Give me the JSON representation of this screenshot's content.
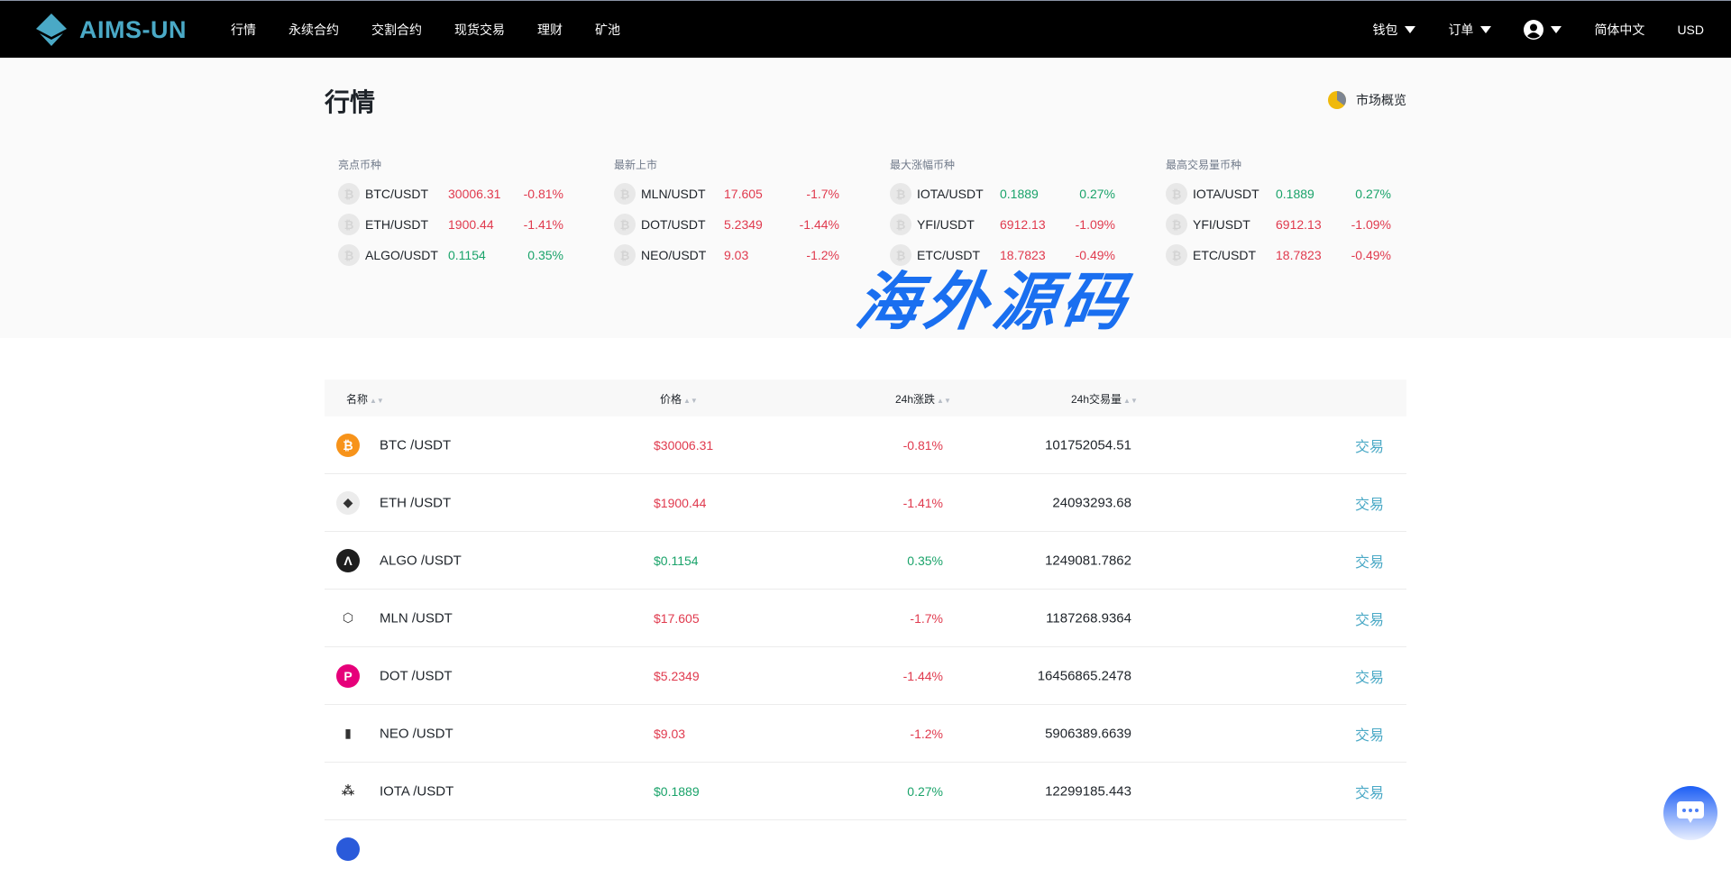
{
  "header": {
    "brand": "AIMS-UN",
    "nav": [
      "行情",
      "永续合约",
      "交割合约",
      "现货交易",
      "理财",
      "矿池"
    ],
    "right": {
      "wallet": "钱包",
      "orders": "订单",
      "language": "简体中文",
      "currency": "USD"
    }
  },
  "overview": {
    "title": "行情",
    "market_overview": "市场概览",
    "cards": [
      {
        "label": "亮点币种",
        "rows": [
          {
            "pair": "BTC/USDT",
            "price": "30006.31",
            "change": "-0.81%",
            "dir": "down"
          },
          {
            "pair": "ETH/USDT",
            "price": "1900.44",
            "change": "-1.41%",
            "dir": "down"
          },
          {
            "pair": "ALGO/USDT",
            "price": "0.1154",
            "change": "0.35%",
            "dir": "up"
          }
        ]
      },
      {
        "label": "最新上市",
        "rows": [
          {
            "pair": "MLN/USDT",
            "price": "17.605",
            "change": "-1.7%",
            "dir": "down"
          },
          {
            "pair": "DOT/USDT",
            "price": "5.2349",
            "change": "-1.44%",
            "dir": "down"
          },
          {
            "pair": "NEO/USDT",
            "price": "9.03",
            "change": "-1.2%",
            "dir": "down"
          }
        ]
      },
      {
        "label": "最大涨幅币种",
        "rows": [
          {
            "pair": "IOTA/USDT",
            "price": "0.1889",
            "change": "0.27%",
            "dir": "up"
          },
          {
            "pair": "YFI/USDT",
            "price": "6912.13",
            "change": "-1.09%",
            "dir": "down"
          },
          {
            "pair": "ETC/USDT",
            "price": "18.7823",
            "change": "-0.49%",
            "dir": "down"
          }
        ]
      },
      {
        "label": "最高交易量币种",
        "rows": [
          {
            "pair": "IOTA/USDT",
            "price": "0.1889",
            "change": "0.27%",
            "dir": "up"
          },
          {
            "pair": "YFI/USDT",
            "price": "6912.13",
            "change": "-1.09%",
            "dir": "down"
          },
          {
            "pair": "ETC/USDT",
            "price": "18.7823",
            "change": "-0.49%",
            "dir": "down"
          }
        ]
      }
    ]
  },
  "table": {
    "columns": {
      "name": "名称",
      "price": "价格",
      "change": "24h涨跌",
      "volume": "24h交易量"
    },
    "trade_label": "交易",
    "rows": [
      {
        "name": "BTC /USDT",
        "price": "$30006.31",
        "change": "-0.81%",
        "volume": "101752054.51",
        "dir": "down",
        "icon": "bitcoin-icon",
        "color": "#f7931a",
        "glyph": "₿"
      },
      {
        "name": "ETH /USDT",
        "price": "$1900.44",
        "change": "-1.41%",
        "volume": "24093293.68",
        "dir": "down",
        "icon": "ethereum-icon",
        "color": "#ececec",
        "glyph": "◆"
      },
      {
        "name": "ALGO /USDT",
        "price": "$0.1154",
        "change": "0.35%",
        "volume": "1249081.7862",
        "dir": "up",
        "icon": "algorand-icon",
        "color": "#1e1e1e",
        "glyph": "Λ"
      },
      {
        "name": "MLN /USDT",
        "price": "$17.605",
        "change": "-1.7%",
        "volume": "1187268.9364",
        "dir": "down",
        "icon": "melon-icon",
        "color": "#ffffff",
        "glyph": "⬡"
      },
      {
        "name": "DOT /USDT",
        "price": "$5.2349",
        "change": "-1.44%",
        "volume": "16456865.2478",
        "dir": "down",
        "icon": "polkadot-icon",
        "color": "#e6007a",
        "glyph": "P"
      },
      {
        "name": "NEO /USDT",
        "price": "$9.03",
        "change": "-1.2%",
        "volume": "5906389.6639",
        "dir": "down",
        "icon": "neo-icon",
        "color": "#ffffff",
        "glyph": "▮"
      },
      {
        "name": "IOTA /USDT",
        "price": "$0.1889",
        "change": "0.27%",
        "volume": "12299185.443",
        "dir": "up",
        "icon": "iota-icon",
        "color": "#ffffff",
        "glyph": "⁂"
      }
    ]
  },
  "watermark": "海外源码",
  "colors": {
    "up": "#1aa36a",
    "down": "#e03a4e",
    "accent": "#4aa9c6"
  }
}
